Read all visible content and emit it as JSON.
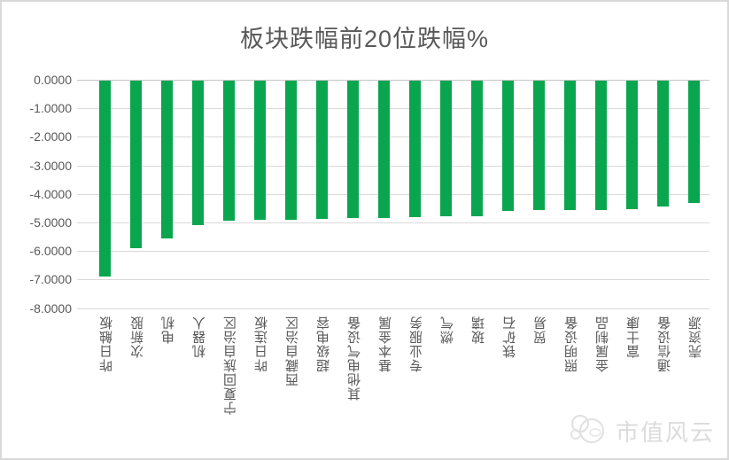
{
  "chart_data": {
    "type": "bar",
    "title": "板块跌幅前20位跌幅%",
    "categories": [
      "昨日触板",
      "次新股",
      "电机",
      "机器人",
      "宁夏回族自治区",
      "昨日连板",
      "西藏自治区",
      "超级电容",
      "其他电气设备",
      "基本金属",
      "专业服务",
      "燃气",
      "玻璃",
      "铁矿石",
      "贸易",
      "照明设备",
      "金属制品",
      "富士康",
      "通信设备",
      "壳资源"
    ],
    "values": [
      -6.85,
      -5.88,
      -5.52,
      -5.05,
      -4.9,
      -4.88,
      -4.87,
      -4.84,
      -4.82,
      -4.8,
      -4.77,
      -4.76,
      -4.74,
      -4.55,
      -4.54,
      -4.53,
      -4.52,
      -4.5,
      -4.42,
      -4.3
    ],
    "xlabel": "",
    "ylabel": "",
    "ylim": [
      -8,
      0
    ],
    "ytick_step": -1,
    "ytick_decimals": 4,
    "ytick_labels": [
      "0.0000",
      "-1.0000",
      "-2.0000",
      "-3.0000",
      "-4.0000",
      "-5.0000",
      "-6.0000",
      "-7.0000",
      "-8.0000"
    ],
    "grid": "horizontal",
    "legend": "none",
    "bar_color": "#0aa64f",
    "axis_text_color": "#595959",
    "gridline_color": "#d9d9d9"
  },
  "watermark": {
    "text": "市值风云",
    "logo": "panda-logo-icon"
  }
}
